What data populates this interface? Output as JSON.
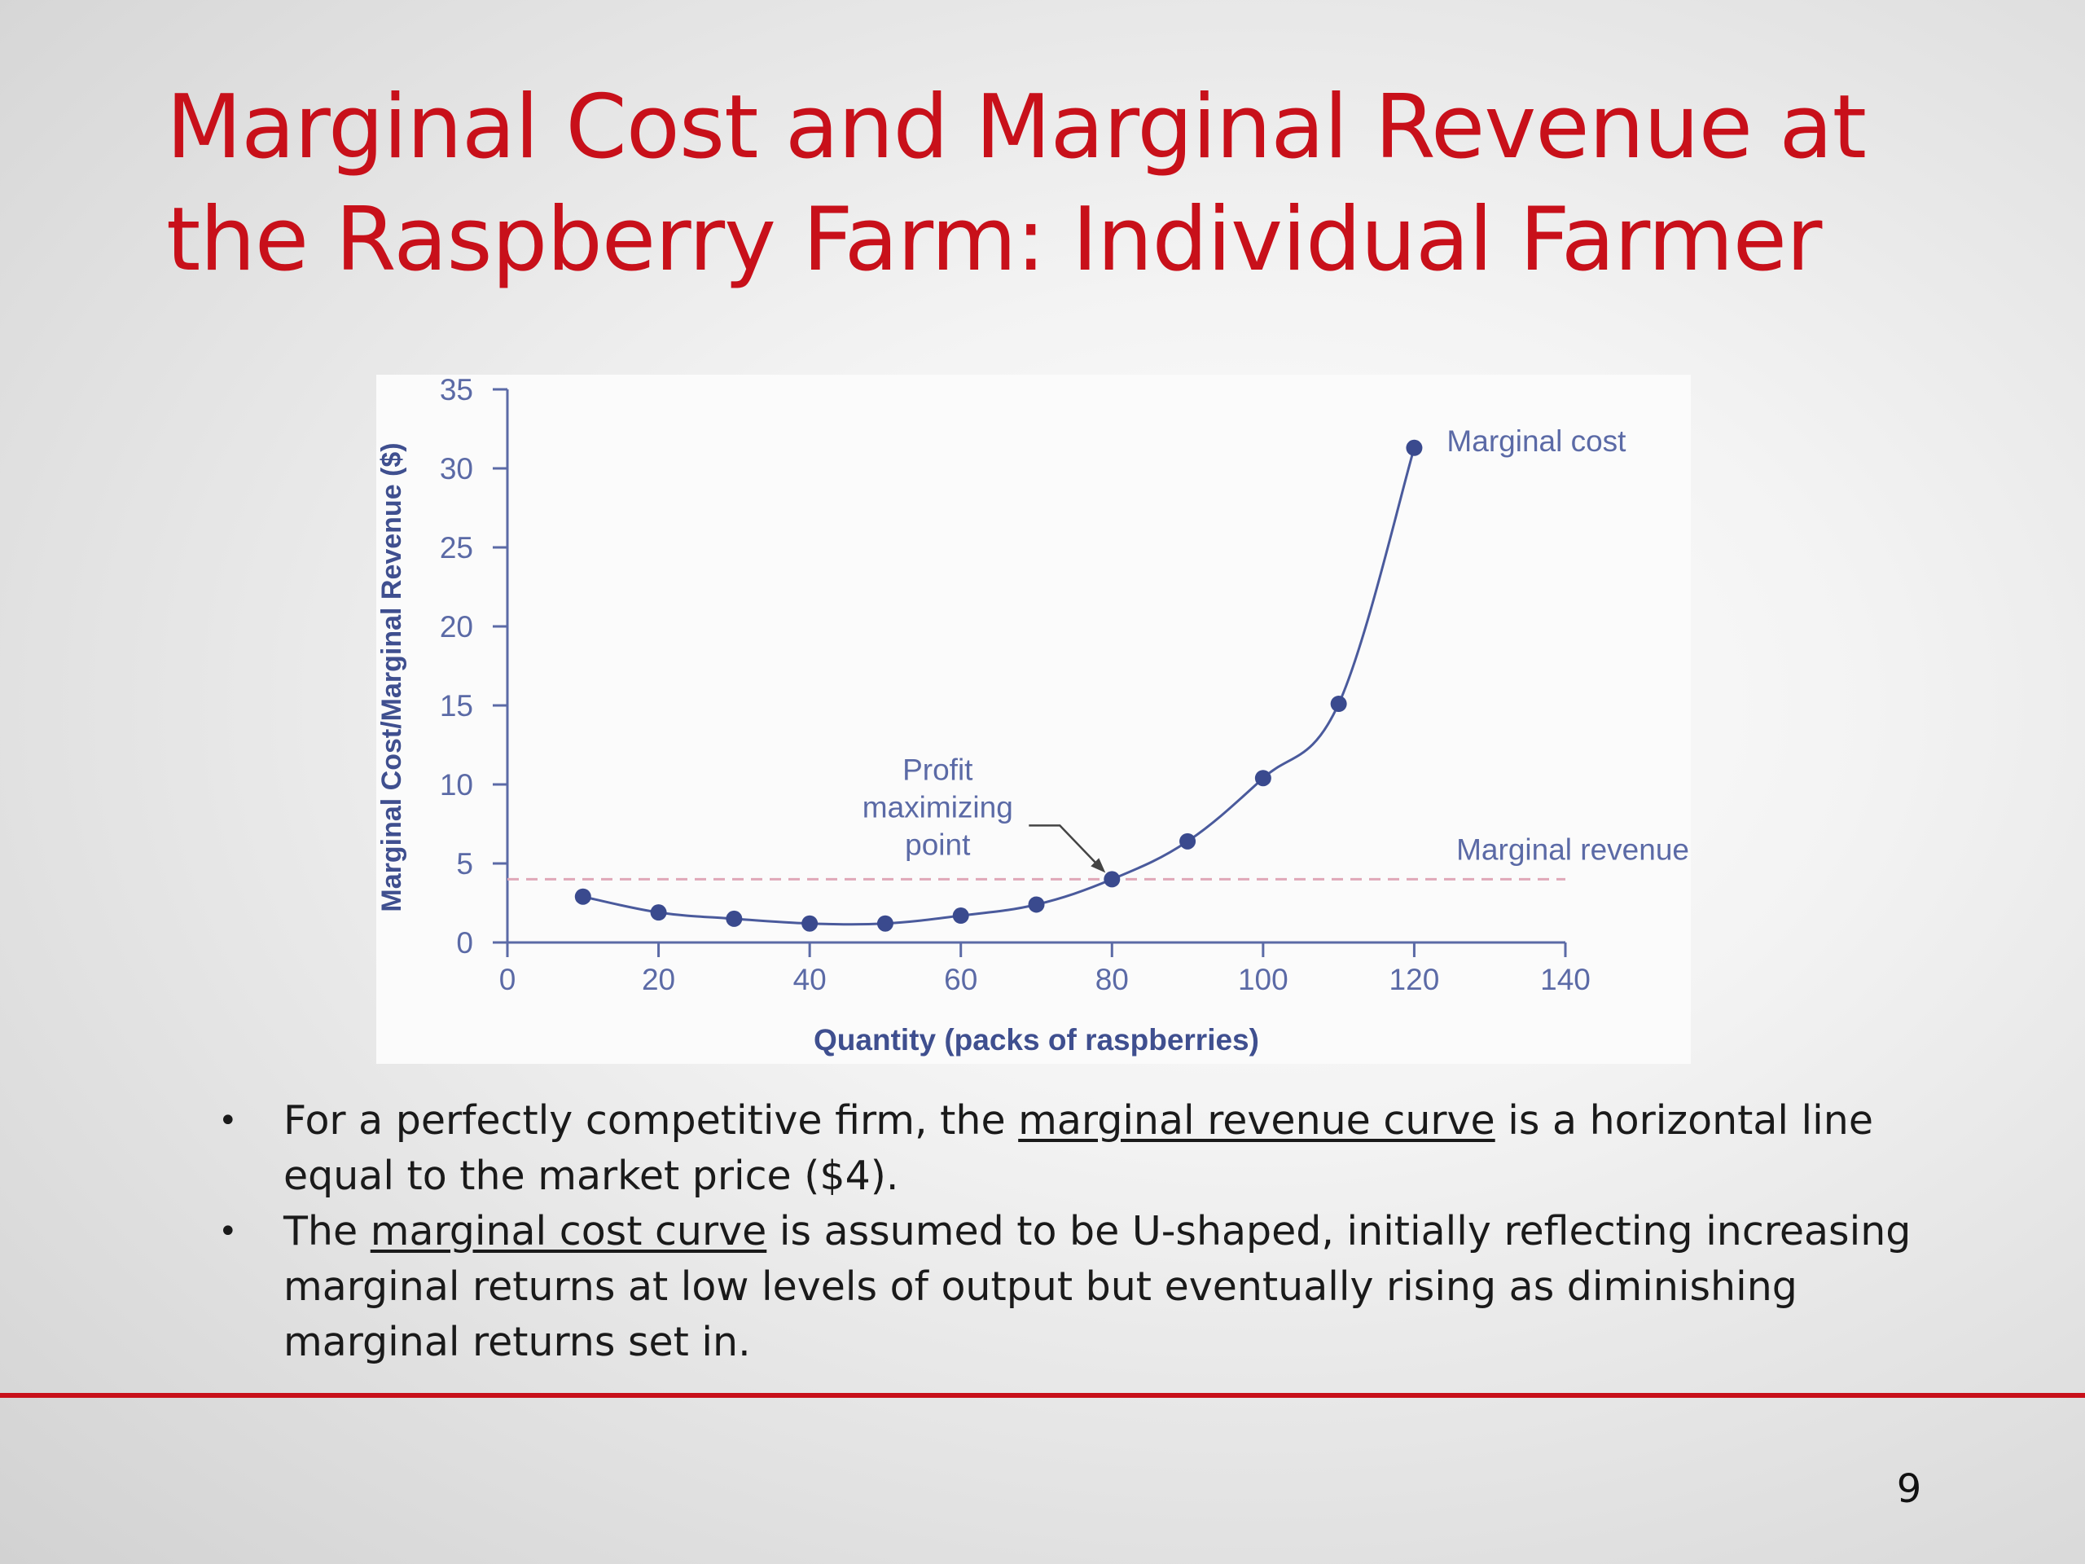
{
  "slide": {
    "title_line1": "Marginal Cost and Marginal Revenue at",
    "title_line2": "the Raspberry Farm: Individual Farmer",
    "page_number": "9",
    "accent_color": "#c8101a"
  },
  "bullets": [
    {
      "marker": "•",
      "before": "For a perfectly competitive firm, the ",
      "link": "marginal revenue curve",
      "after": " is a horizontal line equal to the market price ($4)."
    },
    {
      "marker": "•",
      "before": "The ",
      "link": "marginal cost curve",
      "after": " is assumed to be U-shaped, initially reflecting increasing marginal returns at low levels of output but eventually rising as diminishing marginal returns set in."
    }
  ],
  "chart_data": {
    "type": "line",
    "xlabel": "Quantity (packs of raspberries)",
    "ylabel": "Marginal Cost/Marginal Revenue ($)",
    "xlim": [
      0,
      140
    ],
    "ylim": [
      0,
      35
    ],
    "xticks": [
      0,
      20,
      40,
      60,
      80,
      100,
      120,
      140
    ],
    "yticks": [
      0,
      5,
      10,
      15,
      20,
      25,
      30,
      35
    ],
    "grid": false,
    "series": [
      {
        "name": "Marginal cost",
        "style": "solid-with-markers",
        "color": "#4a5a9c",
        "x": [
          10,
          20,
          30,
          40,
          50,
          60,
          70,
          80,
          90,
          100,
          110,
          120
        ],
        "y": [
          2.9,
          1.9,
          1.5,
          1.2,
          1.2,
          1.7,
          2.4,
          4.0,
          6.4,
          10.4,
          15.1,
          31.3
        ]
      },
      {
        "name": "Marginal revenue",
        "style": "dashed",
        "color": "#e0a8b8",
        "x": [
          0,
          140
        ],
        "y": [
          4,
          4
        ]
      }
    ],
    "annotations": [
      {
        "lines": [
          "Profit",
          "maximizing",
          "point"
        ],
        "x": 80,
        "y": 4
      }
    ]
  }
}
